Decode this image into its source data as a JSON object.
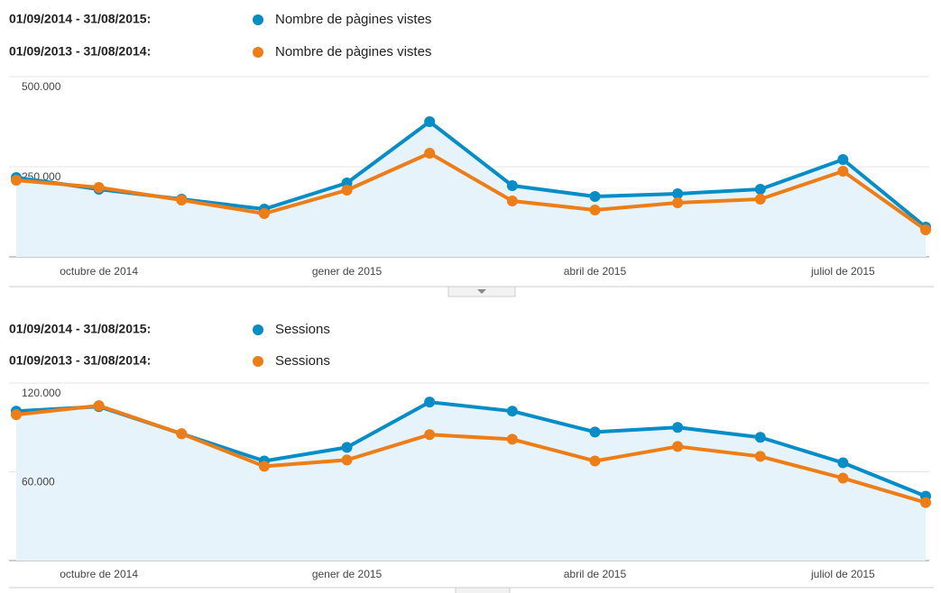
{
  "chart_data": [
    {
      "type": "line",
      "categories": [
        null,
        "octubre de 2014",
        null,
        null,
        "gener de 2015",
        null,
        null,
        "abril de 2015",
        null,
        null,
        "juliol de 2015",
        null
      ],
      "series": [
        {
          "period": "01/09/2014 - 31/08/2015:",
          "name": "Nombre de pàgines vistes",
          "color": "#058dc7",
          "values": [
            220000,
            187500,
            160000,
            132500,
            205000,
            375000,
            197500,
            167500,
            175000,
            187500,
            270000,
            82500
          ]
        },
        {
          "period": "01/09/2013 - 31/08/2014:",
          "name": "Nombre de pàgines vistes",
          "color": "#ed7e17",
          "values": [
            212500,
            192500,
            157500,
            120000,
            185000,
            287500,
            155000,
            130000,
            150000,
            160000,
            237500,
            75000
          ]
        }
      ],
      "ylim": [
        0,
        500000
      ],
      "yticks": [
        {
          "value": 500000,
          "label": "500.000"
        },
        {
          "value": 250000,
          "label": "250.000"
        }
      ],
      "grid": true
    },
    {
      "type": "line",
      "categories": [
        null,
        "octubre de 2014",
        null,
        null,
        "gener de 2015",
        null,
        null,
        "abril de 2015",
        null,
        null,
        "juliol de 2015",
        null
      ],
      "series": [
        {
          "period": "01/09/2014 - 31/08/2015:",
          "name": "Sessions",
          "color": "#058dc7",
          "values": [
            101000,
            104100,
            85700,
            67300,
            76500,
            107100,
            101000,
            86900,
            90000,
            83300,
            66100,
            43500
          ]
        },
        {
          "period": "01/09/2013 - 31/08/2014:",
          "name": "Sessions",
          "color": "#ed7e17",
          "values": [
            98600,
            104700,
            85700,
            63700,
            68000,
            85100,
            82000,
            67300,
            77100,
            70400,
            55700,
            39200
          ]
        }
      ],
      "ylim": [
        0,
        120000
      ],
      "yticks": [
        {
          "value": 120000,
          "label": "120.000"
        },
        {
          "value": 60000,
          "label": "60.000"
        }
      ],
      "grid": true
    }
  ]
}
